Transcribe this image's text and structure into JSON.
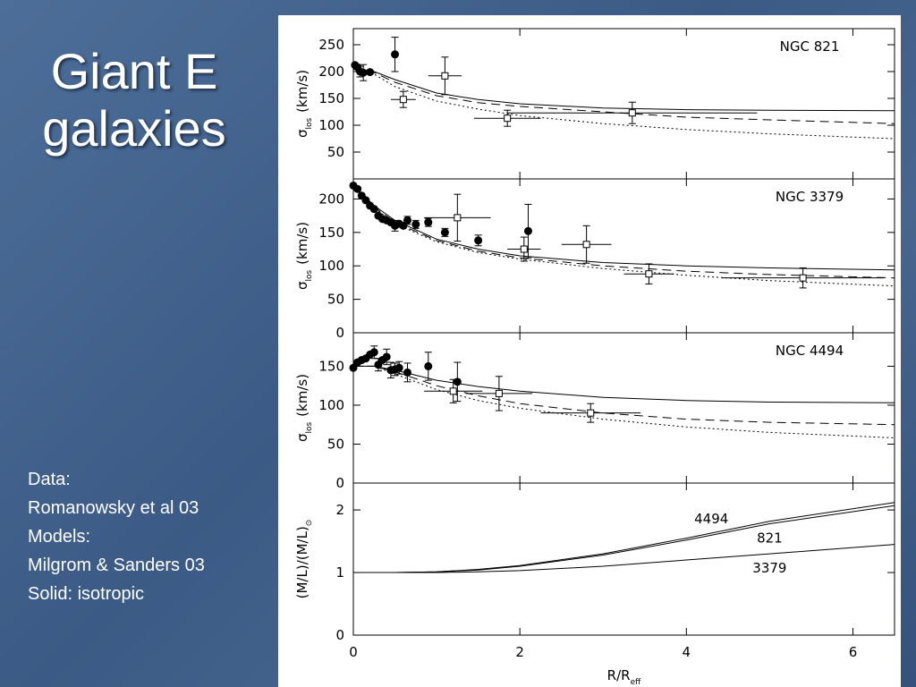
{
  "slide": {
    "title": [
      "Giant E",
      "galaxies"
    ],
    "notes": [
      "Data:",
      "Romanowsky et al 03",
      "Models:",
      "Milgrom & Sanders 03",
      "Solid: isotropic"
    ]
  },
  "chart_data": [
    {
      "type": "line",
      "annotation": "NGC 821",
      "ylabel": [
        "σ",
        "los",
        "(km/s)"
      ],
      "color": "#000000",
      "xlim": [
        0,
        6.5
      ],
      "ylim": [
        0,
        280
      ],
      "yticks": [
        50,
        100,
        150,
        200,
        250
      ],
      "x": [
        0,
        0.25,
        0.5,
        1,
        1.5,
        2,
        3,
        4,
        5,
        6.5
      ],
      "series": [
        {
          "style": "solid",
          "values": [
            205,
            200,
            185,
            160,
            148,
            140,
            132,
            129,
            128,
            127
          ]
        },
        {
          "style": "dashed",
          "values": [
            205,
            198,
            180,
            155,
            142,
            135,
            125,
            115,
            110,
            103
          ]
        },
        {
          "style": "dotted",
          "values": [
            205,
            195,
            172,
            145,
            130,
            118,
            103,
            92,
            84,
            75
          ]
        }
      ],
      "circles": {
        "x": [
          0.02,
          0.05,
          0.08,
          0.12,
          0.2,
          0.5
        ],
        "values": [
          212,
          208,
          200,
          198,
          199,
          232
        ],
        "yerr": [
          null,
          null,
          10,
          15,
          null,
          32
        ]
      },
      "squares": {
        "x": [
          0.6,
          1.1,
          1.85,
          3.35
        ],
        "values": [
          148,
          192,
          113,
          123
        ],
        "xerr": [
          0.15,
          0.2,
          0.4,
          1.5
        ],
        "yerr": [
          15,
          35,
          15,
          20
        ]
      }
    },
    {
      "type": "line",
      "annotation": "NGC 3379",
      "ylabel": [
        "σ",
        "los",
        "(km/s)"
      ],
      "color": "#000000",
      "xlim": [
        0,
        6.5
      ],
      "ylim": [
        0,
        230
      ],
      "yticks": [
        0,
        50,
        100,
        150,
        200
      ],
      "x": [
        0,
        0.25,
        0.5,
        1,
        1.5,
        2,
        3,
        4,
        5,
        6.5
      ],
      "series": [
        {
          "style": "solid",
          "values": [
            220,
            190,
            168,
            140,
            125,
            115,
            105,
            100,
            97,
            94
          ]
        },
        {
          "style": "dashed",
          "values": [
            220,
            188,
            165,
            138,
            122,
            112,
            100,
            92,
            87,
            82
          ]
        },
        {
          "style": "dotted",
          "values": [
            220,
            187,
            163,
            136,
            120,
            110,
            96,
            86,
            78,
            70
          ]
        }
      ],
      "circles": {
        "x": [
          0,
          0.05,
          0.1,
          0.15,
          0.2,
          0.25,
          0.3,
          0.35,
          0.4,
          0.45,
          0.5,
          0.55,
          0.6,
          0.65,
          0.75,
          0.9,
          1.1,
          1.5,
          2.1
        ],
        "values": [
          220,
          215,
          205,
          198,
          190,
          185,
          175,
          170,
          168,
          165,
          160,
          163,
          160,
          168,
          162,
          165,
          150,
          138,
          152
        ],
        "yerr": [
          null,
          null,
          null,
          null,
          null,
          null,
          null,
          null,
          null,
          null,
          8,
          null,
          null,
          6,
          6,
          6,
          6,
          8,
          40
        ]
      },
      "squares": {
        "x": [
          1.25,
          2.05,
          2.8,
          3.55,
          5.4
        ],
        "values": [
          172,
          125,
          132,
          88,
          82
        ],
        "xerr": [
          0.4,
          0.2,
          0.3,
          0.3,
          0.97
        ],
        "yerr": [
          35,
          18,
          28,
          15,
          15
        ]
      }
    },
    {
      "type": "line",
      "annotation": "NGC 4494",
      "ylabel": [
        "σ",
        "los",
        "(km/s)"
      ],
      "color": "#000000",
      "xlim": [
        0,
        6.5
      ],
      "ylim": [
        0,
        193
      ],
      "yticks": [
        0,
        50,
        100,
        150
      ],
      "x": [
        0,
        0.25,
        0.5,
        1,
        1.5,
        2,
        3,
        4,
        5,
        6.5
      ],
      "series": [
        {
          "style": "solid",
          "values": [
            150,
            150,
            145,
            132,
            124,
            118,
            110,
            106,
            104,
            103
          ]
        },
        {
          "style": "dashed",
          "values": [
            150,
            150,
            143,
            125,
            112,
            102,
            90,
            82,
            78,
            75
          ]
        },
        {
          "style": "dotted",
          "values": [
            150,
            150,
            140,
            120,
            106,
            96,
            82,
            72,
            65,
            58
          ]
        }
      ],
      "circles": {
        "x": [
          0,
          0.05,
          0.1,
          0.15,
          0.2,
          0.25,
          0.3,
          0.35,
          0.4,
          0.45,
          0.5,
          0.55,
          0.65,
          0.9,
          1.25
        ],
        "values": [
          148,
          155,
          158,
          160,
          165,
          168,
          152,
          158,
          162,
          145,
          146,
          148,
          142,
          150,
          130
        ],
        "yerr": [
          null,
          null,
          null,
          null,
          null,
          8,
          8,
          null,
          10,
          10,
          8,
          8,
          12,
          18,
          25
        ]
      },
      "squares": {
        "x": [
          1.2,
          1.75,
          2.85
        ],
        "values": [
          118,
          115,
          90
        ],
        "xerr": [
          0.35,
          0.4,
          0.6
        ],
        "yerr": [
          15,
          22,
          12
        ]
      }
    },
    {
      "type": "line",
      "ylabel": [
        "(M/L)/(M/L)",
        "⊙"
      ],
      "xlabel": [
        "R/R",
        "eff"
      ],
      "color": "#000000",
      "xlim": [
        0,
        6.5
      ],
      "ylim": [
        0,
        2.43
      ],
      "yticks": [
        0,
        1,
        2
      ],
      "xticks": [
        0,
        2,
        4,
        6
      ],
      "x": [
        0,
        0.25,
        0.5,
        1,
        1.5,
        2,
        3,
        4,
        5,
        6.5
      ],
      "series": [
        {
          "name": "4494",
          "style": "solid",
          "values": [
            1,
            1,
            1,
            1.01,
            1.05,
            1.11,
            1.3,
            1.55,
            1.82,
            2.12
          ]
        },
        {
          "name": "821",
          "style": "solid",
          "values": [
            1,
            1,
            1,
            1.01,
            1.04,
            1.1,
            1.28,
            1.52,
            1.78,
            2.07
          ]
        },
        {
          "name": "3379",
          "style": "solid",
          "values": [
            1,
            1,
            1,
            1,
            1.01,
            1.03,
            1.1,
            1.2,
            1.3,
            1.45
          ]
        }
      ]
    }
  ]
}
